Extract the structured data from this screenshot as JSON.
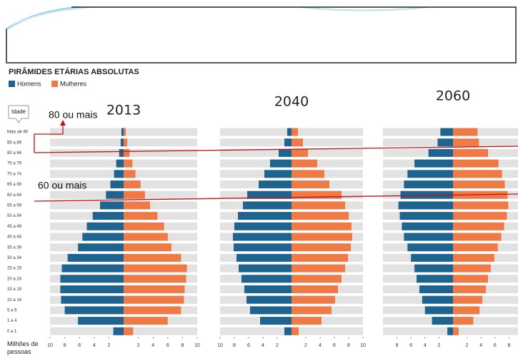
{
  "figure": {
    "title": "PIRÂMIDES ETÁRIAS ABSOLUTAS",
    "ylabel": "Idade",
    "xlabel": "Milhões de pessoas",
    "annotations": [
      "80 ou mais",
      "60 ou mais"
    ]
  },
  "chart_data": [
    {
      "type": "pyramid",
      "title": "2013",
      "categories": [
        "Mais de 90",
        "85 a 89",
        "80 a 84",
        "75 a 79",
        "70 a 74",
        "65 a 69",
        "60 a 64",
        "55 a 59",
        "50 a 54",
        "45 a 49",
        "40 a 44",
        "35 a 39",
        "30 a 34",
        "25 a 29",
        "20 a 24",
        "15 a 19",
        "10 a 14",
        "5 a 9",
        "1 a 4",
        "0 a 1"
      ],
      "series": [
        {
          "name": "Homens",
          "color": "#1f6391",
          "values": [
            0.3,
            0.4,
            0.6,
            1.0,
            1.3,
            1.8,
            2.4,
            3.2,
            4.2,
            5.0,
            5.6,
            6.2,
            7.6,
            8.4,
            8.6,
            8.6,
            8.5,
            8.0,
            6.2,
            1.4
          ]
        },
        {
          "name": "Mulheres",
          "color": "#f07a45",
          "values": [
            0.3,
            0.5,
            0.8,
            1.2,
            1.6,
            2.3,
            2.9,
            3.6,
            4.6,
            5.5,
            6.0,
            6.5,
            7.8,
            8.6,
            8.5,
            8.3,
            8.2,
            7.8,
            6.0,
            1.3
          ]
        }
      ],
      "xlim": [
        0,
        10
      ],
      "xticks": [
        2,
        4,
        6,
        8,
        10
      ]
    },
    {
      "type": "pyramid",
      "title": "2040",
      "series": [
        {
          "color": "#1f6391",
          "values": [
            0.6,
            1.0,
            1.8,
            3.0,
            3.8,
            4.6,
            6.2,
            6.8,
            7.5,
            8.0,
            8.2,
            8.1,
            7.7,
            7.4,
            7.0,
            6.6,
            6.3,
            5.8,
            4.4,
            1.0
          ]
        },
        {
          "color": "#f07a45",
          "values": [
            0.9,
            1.6,
            2.3,
            3.6,
            4.6,
            5.3,
            7.0,
            7.5,
            8.0,
            8.4,
            8.5,
            8.3,
            7.9,
            7.5,
            7.0,
            6.5,
            6.1,
            5.6,
            4.2,
            1.0
          ]
        }
      ],
      "xlim": [
        0,
        10
      ],
      "xticks": [
        2,
        4,
        6,
        8,
        10
      ]
    },
    {
      "type": "pyramid",
      "title": "2060",
      "series": [
        {
          "color": "#1f6391",
          "values": [
            1.8,
            2.2,
            3.5,
            5.5,
            6.5,
            7.0,
            7.5,
            7.8,
            7.6,
            7.3,
            7.0,
            6.5,
            6.0,
            5.5,
            5.2,
            4.8,
            4.4,
            4.0,
            3.0,
            0.8
          ]
        },
        {
          "color": "#f07a45",
          "values": [
            3.5,
            3.7,
            5.0,
            6.5,
            7.0,
            7.4,
            7.8,
            7.9,
            7.7,
            7.3,
            6.9,
            6.4,
            5.9,
            5.4,
            5.0,
            4.7,
            4.2,
            3.8,
            2.9,
            0.8
          ]
        }
      ],
      "xlim": [
        0,
        10
      ],
      "xticks": [
        2,
        4,
        6,
        8
      ]
    }
  ]
}
